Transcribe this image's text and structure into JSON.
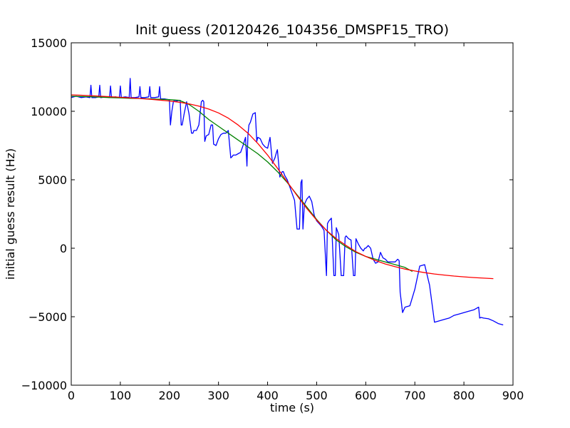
{
  "chart_data": {
    "type": "line",
    "title": "Init guess (20120426_104356_DMSPF15_TRO)",
    "xlabel": "time (s)",
    "ylabel": "initial guess result (Hz)",
    "xlim": [
      0,
      900
    ],
    "ylim": [
      -10000,
      15000
    ],
    "x_ticks": [
      0,
      100,
      200,
      300,
      400,
      500,
      600,
      700,
      800,
      900
    ],
    "y_ticks": [
      -10000,
      -5000,
      0,
      5000,
      10000,
      15000
    ],
    "x_tick_labels": [
      "0",
      "100",
      "200",
      "300",
      "400",
      "500",
      "600",
      "700",
      "800",
      "900"
    ],
    "y_tick_labels": [
      "−10000",
      "−5000",
      "0",
      "5000",
      "10000",
      "15000"
    ],
    "grid": false,
    "legend": "none",
    "series": [
      {
        "color": "#0000ff",
        "x": [
          0,
          10,
          20,
          30,
          38,
          40,
          42,
          50,
          56,
          58,
          60,
          70,
          78,
          80,
          82,
          90,
          98,
          100,
          102,
          110,
          118,
          120,
          122,
          130,
          138,
          140,
          142,
          150,
          158,
          160,
          162,
          170,
          178,
          180,
          182,
          190,
          198,
          200,
          202,
          205,
          208,
          210,
          215,
          220,
          222,
          224,
          226,
          230,
          235,
          240,
          245,
          248,
          250,
          255,
          260,
          265,
          268,
          270,
          272,
          275,
          280,
          285,
          288,
          290,
          295,
          300,
          305,
          310,
          315,
          320,
          325,
          328,
          330,
          335,
          340,
          345,
          350,
          355,
          358,
          360,
          362,
          365,
          370,
          375,
          378,
          380,
          385,
          390,
          395,
          400,
          405,
          410,
          415,
          418,
          420,
          425,
          430,
          432,
          435,
          440,
          445,
          450,
          455,
          460,
          462,
          465,
          468,
          470,
          472,
          475,
          480,
          485,
          490,
          495,
          500,
          505,
          510,
          515,
          520,
          522,
          525,
          530,
          535,
          538,
          540,
          545,
          550,
          555,
          558,
          560,
          565,
          570,
          575,
          578,
          580,
          585,
          590,
          595,
          598,
          600,
          605,
          610,
          615,
          620,
          625,
          630,
          635,
          640,
          645,
          650,
          655,
          660,
          665,
          668,
          670,
          675,
          680,
          690,
          700,
          710,
          720,
          730,
          740,
          750,
          760,
          770,
          780,
          790,
          800,
          810,
          820,
          830,
          832,
          835,
          840,
          850,
          860,
          870,
          880
        ],
        "y": [
          11000,
          11100,
          11000,
          11050,
          11000,
          11900,
          11000,
          11000,
          11050,
          11900,
          11000,
          11050,
          11000,
          11850,
          11000,
          11050,
          11000,
          11850,
          11000,
          11050,
          11000,
          12400,
          11000,
          11000,
          11050,
          11800,
          11000,
          11000,
          11050,
          11800,
          11000,
          11000,
          11050,
          11800,
          10900,
          10900,
          10850,
          10800,
          9000,
          10000,
          10700,
          10800,
          10750,
          10800,
          10800,
          9000,
          9000,
          9800,
          10700,
          9800,
          8400,
          8400,
          8600,
          8600,
          9000,
          10700,
          10800,
          10700,
          7800,
          8200,
          8300,
          9000,
          9000,
          7600,
          7500,
          8000,
          8300,
          8400,
          8400,
          8600,
          6600,
          6700,
          6800,
          6800,
          6900,
          7000,
          7500,
          8100,
          6000,
          8300,
          9000,
          9200,
          9800,
          9900,
          7800,
          8100,
          8000,
          7600,
          7400,
          7300,
          8100,
          6200,
          6600,
          7000,
          7200,
          5200,
          5600,
          5600,
          5300,
          5000,
          4500,
          4000,
          3500,
          1400,
          1400,
          1400,
          4800,
          5000,
          1400,
          3200,
          3600,
          3800,
          3400,
          2400,
          2000,
          1800,
          1600,
          1300,
          -2000,
          1800,
          2000,
          2200,
          -2000,
          -2000,
          1500,
          1000,
          -2000,
          -2000,
          800,
          900,
          700,
          600,
          -2000,
          -2000,
          700,
          300,
          0,
          -200,
          0,
          0,
          200,
          0,
          -800,
          -1100,
          -1000,
          -300,
          -700,
          -800,
          -1000,
          -1000,
          -1000,
          -1000,
          -800,
          -900,
          -3200,
          -4700,
          -4300,
          -4200,
          -3000,
          -1300,
          -1200,
          -2700,
          -5400,
          -5300,
          -5200,
          -5100,
          -4900,
          -4800,
          -4700,
          -4600,
          -4500,
          -4300,
          -5100,
          -5050,
          -5100,
          -5150,
          -5300,
          -5500,
          -5600
        ]
      },
      {
        "color": "#008000",
        "x": [
          0,
          20,
          40,
          60,
          80,
          100,
          120,
          140,
          160,
          180,
          200,
          220,
          240,
          260,
          280,
          300,
          320,
          340,
          360,
          380,
          400,
          420,
          440,
          460,
          480,
          500,
          520,
          540,
          560,
          580,
          600,
          620,
          640,
          660,
          680,
          695
        ],
        "y": [
          11100,
          11080,
          11060,
          11030,
          11000,
          10980,
          10950,
          10930,
          10900,
          10880,
          10850,
          10800,
          10500,
          10000,
          9400,
          8900,
          8400,
          7900,
          7400,
          6900,
          6300,
          5600,
          4800,
          3900,
          3000,
          2100,
          1300,
          600,
          100,
          -300,
          -600,
          -800,
          -1000,
          -1200,
          -1400,
          -1700
        ]
      },
      {
        "color": "#ff0000",
        "x": [
          0,
          20,
          40,
          60,
          80,
          100,
          120,
          140,
          160,
          180,
          200,
          220,
          240,
          260,
          280,
          300,
          320,
          340,
          360,
          380,
          400,
          420,
          440,
          460,
          480,
          500,
          520,
          540,
          560,
          580,
          600,
          620,
          640,
          660,
          680,
          700,
          720,
          740,
          760,
          780,
          800,
          820,
          840,
          860
        ],
        "y": [
          11200,
          11170,
          11140,
          11100,
          11060,
          11020,
          10980,
          10930,
          10880,
          10820,
          10750,
          10660,
          10540,
          10380,
          10160,
          9880,
          9500,
          9000,
          8400,
          7650,
          6800,
          5850,
          4850,
          3850,
          2900,
          2050,
          1300,
          700,
          200,
          -250,
          -600,
          -900,
          -1150,
          -1350,
          -1520,
          -1660,
          -1780,
          -1880,
          -1960,
          -2030,
          -2090,
          -2140,
          -2180,
          -2220
        ]
      }
    ]
  }
}
